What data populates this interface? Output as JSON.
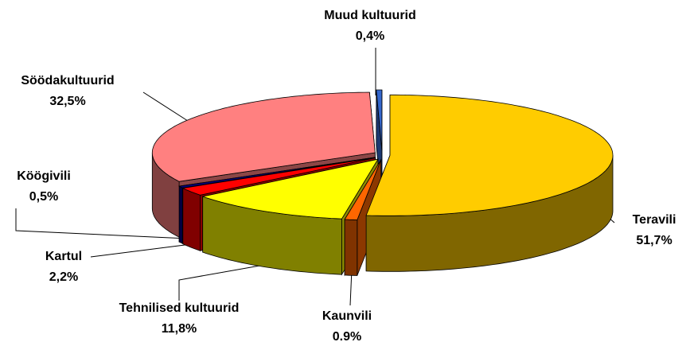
{
  "chart_data": {
    "type": "pie3d",
    "categories": [
      "Teravili",
      "Kaunvili",
      "Tehnilised kultuurid",
      "Kartul",
      "Köögivili",
      "Söödakultuurid",
      "Muud kultuurid"
    ],
    "values": [
      51.7,
      0.9,
      11.8,
      2.2,
      0.5,
      32.5,
      0.4
    ],
    "value_labels": [
      "51,7%",
      "0.9%",
      "11,8%",
      "2,2%",
      "0,5%",
      "32,5%",
      "0,4%"
    ],
    "colors": [
      "#ffcc00",
      "#ff6600",
      "#ffff00",
      "#ff0000",
      "#000080",
      "#ff8080",
      "#3366cc"
    ]
  }
}
